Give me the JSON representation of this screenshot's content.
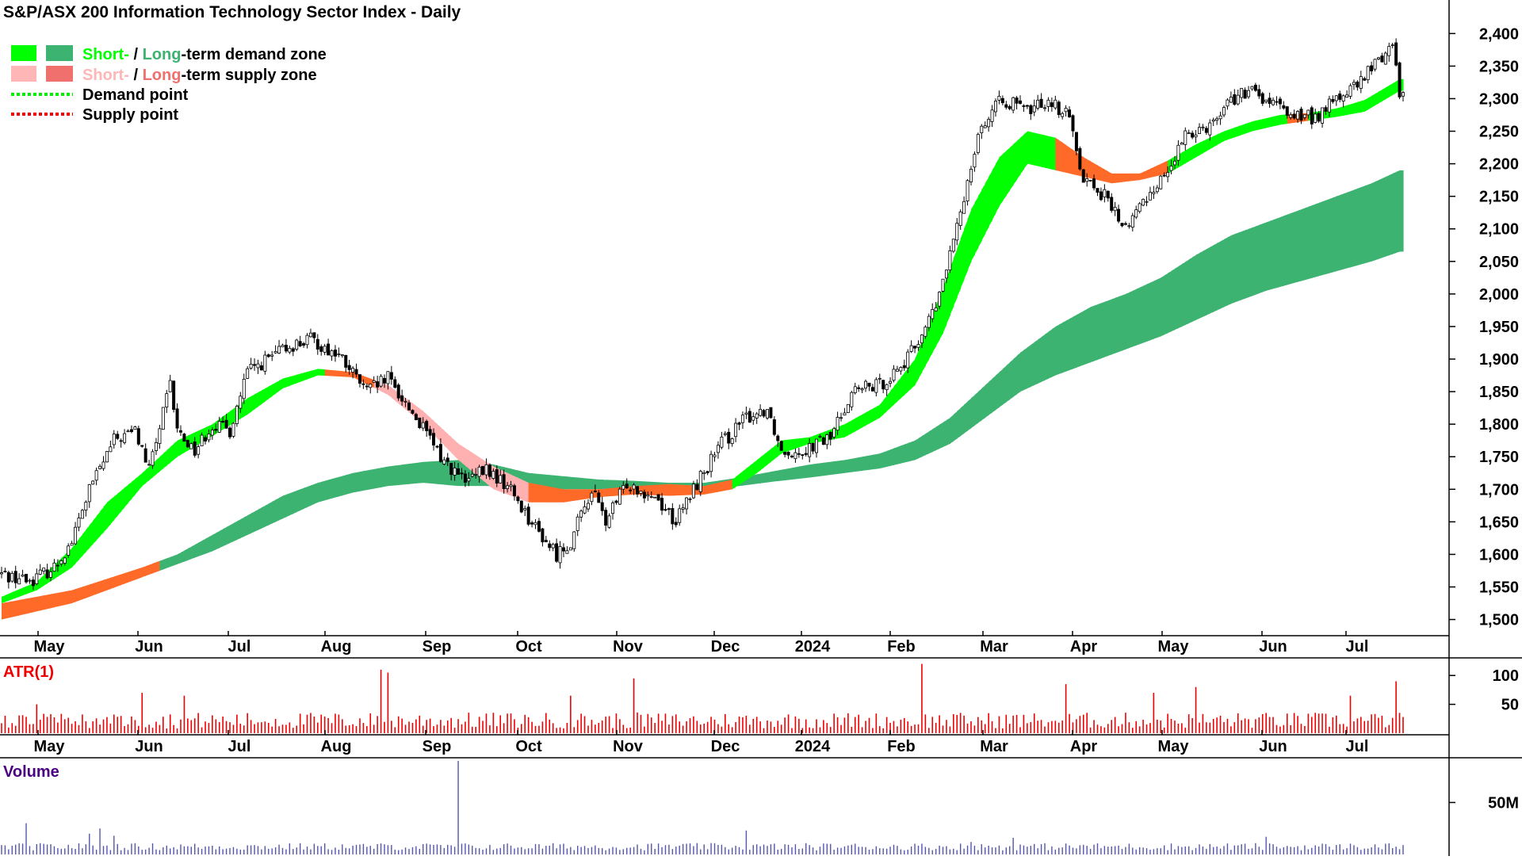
{
  "colors": {
    "demand_short": "#00ff00",
    "demand_long": "#3cb371",
    "supply_short": "#ffb6b6",
    "supply_long": "#f0706e",
    "orange_zone": "#ff6a28",
    "pink_zone": "#ffb0b0",
    "demand_point": "#00ee00",
    "supply_point": "#ee0000",
    "candle": "#000000",
    "atr": "#ee0000",
    "volume": "#5555aa",
    "volume_label": "#4b0082",
    "atr_label": "#ee0000"
  },
  "title": "S&P/ASX 200 Information Technology Sector Index - Daily",
  "legend": {
    "line1_short": "Short-",
    "line1_sep": " / ",
    "line1_long": "Long",
    "line1_rest": "-term demand zone",
    "line2_short": "Short-",
    "line2_sep": " / ",
    "line2_long": "Long",
    "line2_rest": "-term supply zone",
    "line3": "Demand point",
    "line4": "Supply point"
  },
  "chart_data": {
    "type": "candlestick",
    "price_axis": {
      "ticks": [
        1500,
        1550,
        1600,
        1650,
        1700,
        1750,
        1800,
        1850,
        1900,
        1950,
        2000,
        2050,
        2100,
        2150,
        2200,
        2250,
        2300,
        2350,
        2400
      ],
      "tick_labels": [
        "1,500",
        "1,550",
        "1,600",
        "1,650",
        "1,700",
        "1,750",
        "1,800",
        "1,850",
        "1,900",
        "1,950",
        "2,000",
        "2,050",
        "2,100",
        "2,150",
        "2,200",
        "2,250",
        "2,300",
        "2,350",
        "2,400"
      ],
      "range": [
        1480,
        2415
      ]
    },
    "months": [
      "May",
      "Jun",
      "Jul",
      "Aug",
      "Sep",
      "Oct",
      "Nov",
      "Dec",
      "2024",
      "Feb",
      "Mar",
      "Apr",
      "May",
      "Jun",
      "Jul"
    ],
    "close_keypoints": [
      [
        0,
        1570
      ],
      [
        8,
        1560
      ],
      [
        15,
        1580
      ],
      [
        20,
        1620
      ],
      [
        25,
        1700
      ],
      [
        32,
        1775
      ],
      [
        38,
        1790
      ],
      [
        42,
        1730
      ],
      [
        48,
        1860
      ],
      [
        50,
        1790
      ],
      [
        55,
        1760
      ],
      [
        60,
        1800
      ],
      [
        65,
        1790
      ],
      [
        70,
        1880
      ],
      [
        76,
        1900
      ],
      [
        82,
        1920
      ],
      [
        88,
        1930
      ],
      [
        96,
        1905
      ],
      [
        104,
        1850
      ],
      [
        110,
        1870
      ],
      [
        118,
        1810
      ],
      [
        125,
        1750
      ],
      [
        132,
        1710
      ],
      [
        138,
        1730
      ],
      [
        145,
        1700
      ],
      [
        152,
        1640
      ],
      [
        158,
        1600
      ],
      [
        162,
        1620
      ],
      [
        168,
        1700
      ],
      [
        172,
        1650
      ],
      [
        178,
        1710
      ],
      [
        186,
        1690
      ],
      [
        192,
        1650
      ],
      [
        198,
        1710
      ],
      [
        205,
        1770
      ],
      [
        212,
        1810
      ],
      [
        218,
        1825
      ],
      [
        222,
        1760
      ],
      [
        228,
        1760
      ],
      [
        236,
        1780
      ],
      [
        242,
        1850
      ],
      [
        250,
        1860
      ],
      [
        258,
        1900
      ],
      [
        266,
        1980
      ],
      [
        272,
        2100
      ],
      [
        278,
        2250
      ],
      [
        285,
        2300
      ],
      [
        292,
        2280
      ],
      [
        298,
        2300
      ],
      [
        304,
        2270
      ],
      [
        308,
        2180
      ],
      [
        314,
        2150
      ],
      [
        320,
        2100
      ],
      [
        326,
        2150
      ],
      [
        332,
        2190
      ],
      [
        338,
        2250
      ],
      [
        344,
        2260
      ],
      [
        350,
        2300
      ],
      [
        356,
        2310
      ],
      [
        362,
        2290
      ],
      [
        368,
        2275
      ],
      [
        374,
        2270
      ],
      [
        380,
        2300
      ],
      [
        386,
        2320
      ],
      [
        392,
        2360
      ],
      [
        396,
        2385
      ],
      [
        398,
        2310
      ]
    ],
    "demand_zone_short_keypoints": [
      [
        0,
        1535,
        1525
      ],
      [
        10,
        1558,
        1545
      ],
      [
        20,
        1610,
        1580
      ],
      [
        30,
        1680,
        1640
      ],
      [
        40,
        1725,
        1705
      ],
      [
        50,
        1775,
        1750
      ],
      [
        60,
        1800,
        1782
      ],
      [
        70,
        1840,
        1815
      ],
      [
        80,
        1870,
        1855
      ],
      [
        90,
        1885,
        1875
      ],
      [
        100,
        1880,
        1872
      ],
      [
        110,
        1860,
        1845
      ],
      [
        120,
        1820,
        1800
      ],
      [
        130,
        1770,
        1745
      ],
      [
        140,
        1735,
        1700
      ],
      [
        150,
        1710,
        1680
      ],
      [
        160,
        1700,
        1680
      ],
      [
        170,
        1700,
        1688
      ],
      [
        180,
        1705,
        1692
      ],
      [
        190,
        1708,
        1690
      ],
      [
        200,
        1705,
        1692
      ],
      [
        208,
        1715,
        1700
      ],
      [
        215,
        1745,
        1725
      ],
      [
        222,
        1775,
        1755
      ],
      [
        230,
        1780,
        1770
      ],
      [
        240,
        1800,
        1780
      ],
      [
        250,
        1830,
        1810
      ],
      [
        260,
        1900,
        1860
      ],
      [
        268,
        2010,
        1940
      ],
      [
        276,
        2130,
        2050
      ],
      [
        284,
        2210,
        2135
      ],
      [
        292,
        2250,
        2200
      ],
      [
        300,
        2240,
        2190
      ],
      [
        308,
        2210,
        2180
      ],
      [
        316,
        2185,
        2170
      ],
      [
        324,
        2185,
        2175
      ],
      [
        332,
        2205,
        2185
      ],
      [
        340,
        2230,
        2210
      ],
      [
        348,
        2250,
        2235
      ],
      [
        356,
        2265,
        2250
      ],
      [
        364,
        2275,
        2260
      ],
      [
        372,
        2278,
        2266
      ],
      [
        380,
        2285,
        2272
      ],
      [
        388,
        2298,
        2280
      ],
      [
        398,
        2330,
        2312
      ]
    ],
    "demand_zone_long_keypoints": [
      [
        0,
        1525,
        1500
      ],
      [
        20,
        1545,
        1525
      ],
      [
        40,
        1580,
        1565
      ],
      [
        50,
        1600,
        1585
      ],
      [
        60,
        1630,
        1605
      ],
      [
        70,
        1660,
        1630
      ],
      [
        80,
        1690,
        1655
      ],
      [
        90,
        1710,
        1680
      ],
      [
        100,
        1725,
        1695
      ],
      [
        110,
        1735,
        1705
      ],
      [
        120,
        1742,
        1710
      ],
      [
        130,
        1745,
        1705
      ],
      [
        140,
        1738,
        1705
      ],
      [
        150,
        1725,
        1702
      ],
      [
        160,
        1720,
        1700
      ],
      [
        170,
        1715,
        1700
      ],
      [
        180,
        1713,
        1700
      ],
      [
        190,
        1710,
        1698
      ],
      [
        200,
        1710,
        1698
      ],
      [
        210,
        1718,
        1705
      ],
      [
        220,
        1728,
        1712
      ],
      [
        230,
        1738,
        1718
      ],
      [
        240,
        1745,
        1725
      ],
      [
        250,
        1755,
        1732
      ],
      [
        260,
        1775,
        1745
      ],
      [
        270,
        1810,
        1770
      ],
      [
        280,
        1860,
        1810
      ],
      [
        290,
        1910,
        1850
      ],
      [
        300,
        1950,
        1875
      ],
      [
        310,
        1980,
        1895
      ],
      [
        320,
        2000,
        1915
      ],
      [
        330,
        2025,
        1935
      ],
      [
        340,
        2060,
        1960
      ],
      [
        350,
        2090,
        1985
      ],
      [
        360,
        2110,
        2005
      ],
      [
        370,
        2130,
        2020
      ],
      [
        380,
        2150,
        2035
      ],
      [
        390,
        2170,
        2050
      ],
      [
        398,
        2190,
        2065
      ]
    ],
    "atr_axis": {
      "ticks": [
        50,
        100
      ],
      "tick_labels": [
        "50",
        "100"
      ],
      "range": [
        0,
        125
      ]
    },
    "atr_spikes": [
      [
        10,
        50
      ],
      [
        40,
        70
      ],
      [
        52,
        65
      ],
      [
        108,
        110
      ],
      [
        110,
        105
      ],
      [
        162,
        65
      ],
      [
        180,
        95
      ],
      [
        262,
        120
      ],
      [
        303,
        85
      ],
      [
        328,
        70
      ],
      [
        340,
        80
      ],
      [
        384,
        65
      ],
      [
        397,
        90
      ]
    ],
    "volume_axis": {
      "ticks": [
        50
      ],
      "tick_labels": [
        "50M"
      ],
      "range": [
        0,
        90
      ]
    },
    "volume_spikes": [
      [
        7,
        30
      ],
      [
        25,
        20
      ],
      [
        28,
        25
      ],
      [
        32,
        18
      ],
      [
        130,
        90
      ],
      [
        212,
        23
      ],
      [
        276,
        12
      ],
      [
        288,
        16
      ],
      [
        360,
        17
      ]
    ],
    "n_bars": 400,
    "atr_label": "ATR(1)",
    "volume_label": "Volume"
  }
}
